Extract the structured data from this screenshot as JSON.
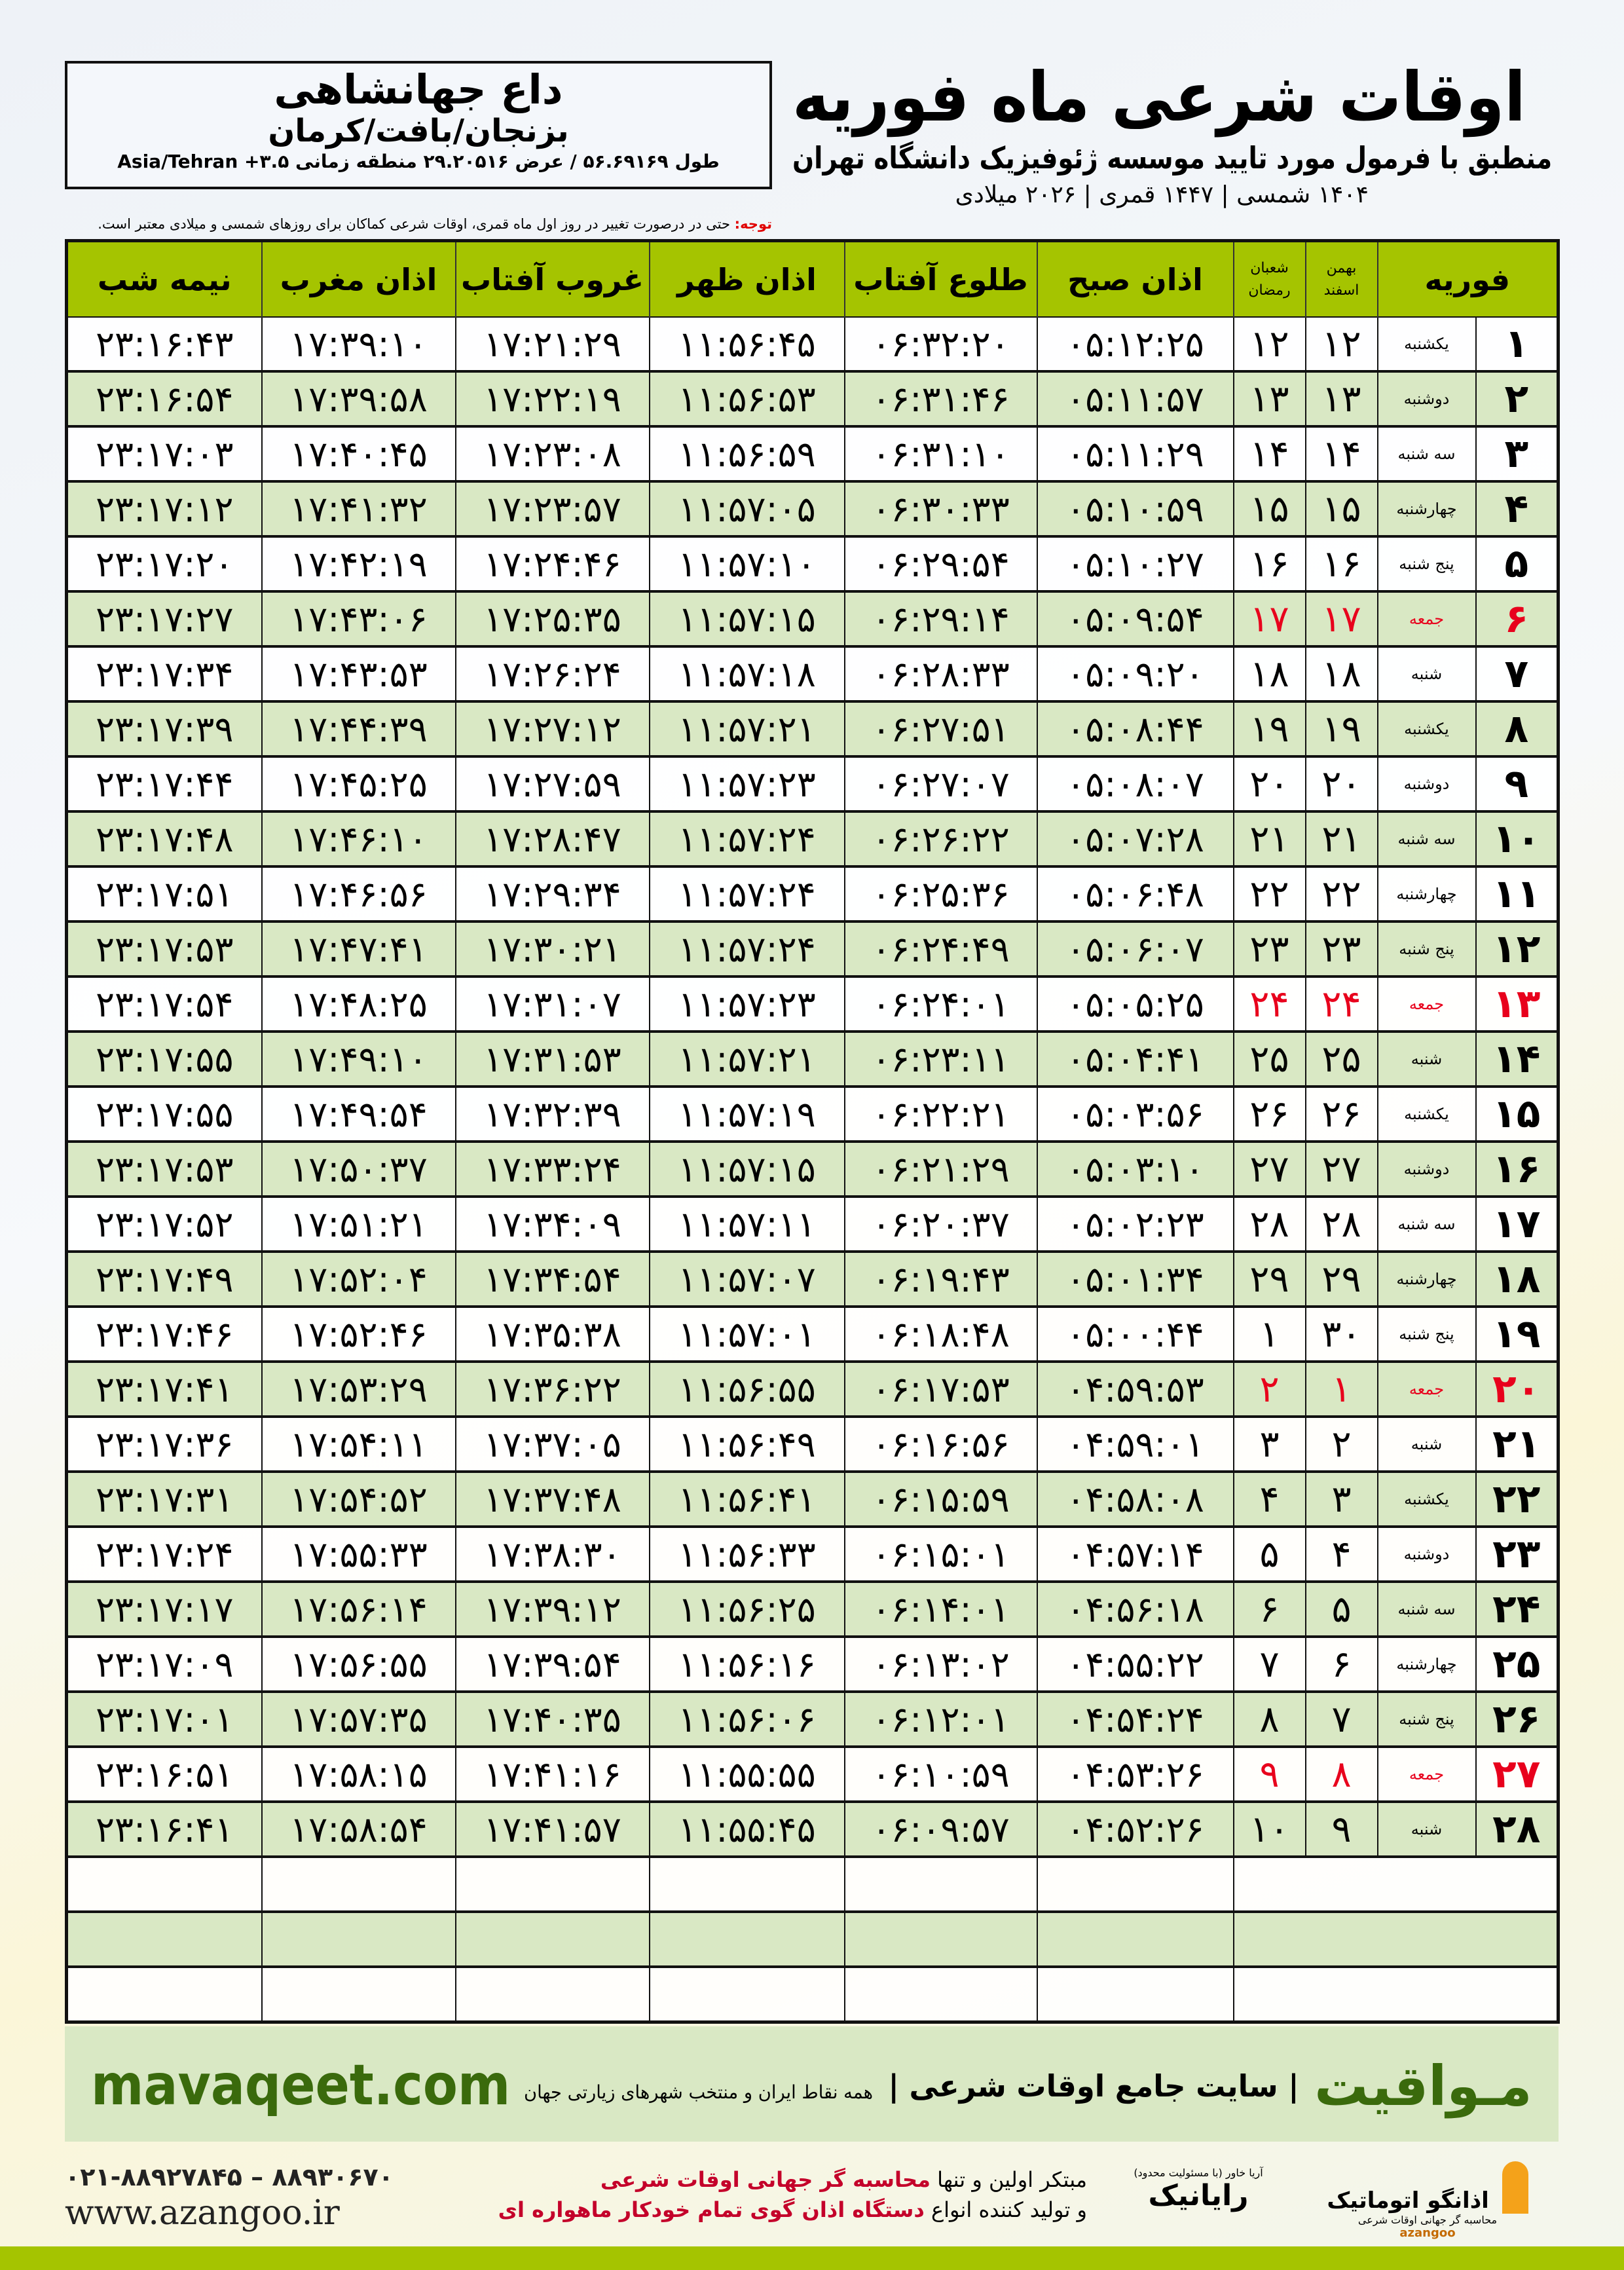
{
  "location": {
    "name": "داع جهانشاهی",
    "region": "بزنجان/بافت/کرمان",
    "coords": "طول ۵۶.۶۹۱۶۹ / عرض ۲۹.۲۰۵۱۶ منطقه زمانی ۳.۵+ Asia/Tehran"
  },
  "header": {
    "title": "اوقات شرعی ماه فوریه",
    "subtitle": "منطبق با فرمول مورد تایید موسسه ژئوفیزیک دانشگاه تهران",
    "dates": "۱۴۰۴ شمسی | ۱۴۴۷ قمری | ۲۰۲۶ میلادی",
    "note_label": "توجه:",
    "note_text": " حتی در درصورت تغییر در روز اول ماه قمری، اوقات شرعی کماکان برای روزهای شمسی و میلادی معتبر است."
  },
  "table": {
    "headers": {
      "month": "فوریه",
      "solar_top": "بهمن",
      "solar_bottom": "اسفند",
      "lunar_top": "شعبان",
      "lunar_bottom": "رمضان",
      "fajr": "اذان صبح",
      "sunrise": "طلوع آفتاب",
      "dhuhr": "اذان ظهر",
      "sunset": "غروب آفتاب",
      "maghrib": "اذان مغرب",
      "midnight": "نیمه شب"
    },
    "rows": [
      [
        "۱",
        "یکشنبه",
        "۱۲",
        "۱۲",
        "۰۵:۱۲:۲۵",
        "۰۶:۳۲:۲۰",
        "۱۱:۵۶:۴۵",
        "۱۷:۲۱:۲۹",
        "۱۷:۳۹:۱۰",
        "۲۳:۱۶:۴۳"
      ],
      [
        "۲",
        "دوشنبه",
        "۱۳",
        "۱۳",
        "۰۵:۱۱:۵۷",
        "۰۶:۳۱:۴۶",
        "۱۱:۵۶:۵۳",
        "۱۷:۲۲:۱۹",
        "۱۷:۳۹:۵۸",
        "۲۳:۱۶:۵۴"
      ],
      [
        "۳",
        "سه شنبه",
        "۱۴",
        "۱۴",
        "۰۵:۱۱:۲۹",
        "۰۶:۳۱:۱۰",
        "۱۱:۵۶:۵۹",
        "۱۷:۲۳:۰۸",
        "۱۷:۴۰:۴۵",
        "۲۳:۱۷:۰۳"
      ],
      [
        "۴",
        "چهارشنبه",
        "۱۵",
        "۱۵",
        "۰۵:۱۰:۵۹",
        "۰۶:۳۰:۳۳",
        "۱۱:۵۷:۰۵",
        "۱۷:۲۳:۵۷",
        "۱۷:۴۱:۳۲",
        "۲۳:۱۷:۱۲"
      ],
      [
        "۵",
        "پنج شنبه",
        "۱۶",
        "۱۶",
        "۰۵:۱۰:۲۷",
        "۰۶:۲۹:۵۴",
        "۱۱:۵۷:۱۰",
        "۱۷:۲۴:۴۶",
        "۱۷:۴۲:۱۹",
        "۲۳:۱۷:۲۰"
      ],
      [
        "۶",
        "جمعه",
        "۱۷",
        "۱۷",
        "۰۵:۰۹:۵۴",
        "۰۶:۲۹:۱۴",
        "۱۱:۵۷:۱۵",
        "۱۷:۲۵:۳۵",
        "۱۷:۴۳:۰۶",
        "۲۳:۱۷:۲۷"
      ],
      [
        "۷",
        "شنبه",
        "۱۸",
        "۱۸",
        "۰۵:۰۹:۲۰",
        "۰۶:۲۸:۳۳",
        "۱۱:۵۷:۱۸",
        "۱۷:۲۶:۲۴",
        "۱۷:۴۳:۵۳",
        "۲۳:۱۷:۳۴"
      ],
      [
        "۸",
        "یکشنبه",
        "۱۹",
        "۱۹",
        "۰۵:۰۸:۴۴",
        "۰۶:۲۷:۵۱",
        "۱۱:۵۷:۲۱",
        "۱۷:۲۷:۱۲",
        "۱۷:۴۴:۳۹",
        "۲۳:۱۷:۳۹"
      ],
      [
        "۹",
        "دوشنبه",
        "۲۰",
        "۲۰",
        "۰۵:۰۸:۰۷",
        "۰۶:۲۷:۰۷",
        "۱۱:۵۷:۲۳",
        "۱۷:۲۷:۵۹",
        "۱۷:۴۵:۲۵",
        "۲۳:۱۷:۴۴"
      ],
      [
        "۱۰",
        "سه شنبه",
        "۲۱",
        "۲۱",
        "۰۵:۰۷:۲۸",
        "۰۶:۲۶:۲۲",
        "۱۱:۵۷:۲۴",
        "۱۷:۲۸:۴۷",
        "۱۷:۴۶:۱۰",
        "۲۳:۱۷:۴۸"
      ],
      [
        "۱۱",
        "چهارشنبه",
        "۲۲",
        "۲۲",
        "۰۵:۰۶:۴۸",
        "۰۶:۲۵:۳۶",
        "۱۱:۵۷:۲۴",
        "۱۷:۲۹:۳۴",
        "۱۷:۴۶:۵۶",
        "۲۳:۱۷:۵۱"
      ],
      [
        "۱۲",
        "پنج شنبه",
        "۲۳",
        "۲۳",
        "۰۵:۰۶:۰۷",
        "۰۶:۲۴:۴۹",
        "۱۱:۵۷:۲۴",
        "۱۷:۳۰:۲۱",
        "۱۷:۴۷:۴۱",
        "۲۳:۱۷:۵۳"
      ],
      [
        "۱۳",
        "جمعه",
        "۲۴",
        "۲۴",
        "۰۵:۰۵:۲۵",
        "۰۶:۲۴:۰۱",
        "۱۱:۵۷:۲۳",
        "۱۷:۳۱:۰۷",
        "۱۷:۴۸:۲۵",
        "۲۳:۱۷:۵۴"
      ],
      [
        "۱۴",
        "شنبه",
        "۲۵",
        "۲۵",
        "۰۵:۰۴:۴۱",
        "۰۶:۲۳:۱۱",
        "۱۱:۵۷:۲۱",
        "۱۷:۳۱:۵۳",
        "۱۷:۴۹:۱۰",
        "۲۳:۱۷:۵۵"
      ],
      [
        "۱۵",
        "یکشنبه",
        "۲۶",
        "۲۶",
        "۰۵:۰۳:۵۶",
        "۰۶:۲۲:۲۱",
        "۱۱:۵۷:۱۹",
        "۱۷:۳۲:۳۹",
        "۱۷:۴۹:۵۴",
        "۲۳:۱۷:۵۵"
      ],
      [
        "۱۶",
        "دوشنبه",
        "۲۷",
        "۲۷",
        "۰۵:۰۳:۱۰",
        "۰۶:۲۱:۲۹",
        "۱۱:۵۷:۱۵",
        "۱۷:۳۳:۲۴",
        "۱۷:۵۰:۳۷",
        "۲۳:۱۷:۵۳"
      ],
      [
        "۱۷",
        "سه شنبه",
        "۲۸",
        "۲۸",
        "۰۵:۰۲:۲۳",
        "۰۶:۲۰:۳۷",
        "۱۱:۵۷:۱۱",
        "۱۷:۳۴:۰۹",
        "۱۷:۵۱:۲۱",
        "۲۳:۱۷:۵۲"
      ],
      [
        "۱۸",
        "چهارشنبه",
        "۲۹",
        "۲۹",
        "۰۵:۰۱:۳۴",
        "۰۶:۱۹:۴۳",
        "۱۱:۵۷:۰۷",
        "۱۷:۳۴:۵۴",
        "۱۷:۵۲:۰۴",
        "۲۳:۱۷:۴۹"
      ],
      [
        "۱۹",
        "پنج شنبه",
        "۳۰",
        "۱",
        "۰۵:۰۰:۴۴",
        "۰۶:۱۸:۴۸",
        "۱۱:۵۷:۰۱",
        "۱۷:۳۵:۳۸",
        "۱۷:۵۲:۴۶",
        "۲۳:۱۷:۴۶"
      ],
      [
        "۲۰",
        "جمعه",
        "۱",
        "۲",
        "۰۴:۵۹:۵۳",
        "۰۶:۱۷:۵۳",
        "۱۱:۵۶:۵۵",
        "۱۷:۳۶:۲۲",
        "۱۷:۵۳:۲۹",
        "۲۳:۱۷:۴۱"
      ],
      [
        "۲۱",
        "شنبه",
        "۲",
        "۳",
        "۰۴:۵۹:۰۱",
        "۰۶:۱۶:۵۶",
        "۱۱:۵۶:۴۹",
        "۱۷:۳۷:۰۵",
        "۱۷:۵۴:۱۱",
        "۲۳:۱۷:۳۶"
      ],
      [
        "۲۲",
        "یکشنبه",
        "۳",
        "۴",
        "۰۴:۵۸:۰۸",
        "۰۶:۱۵:۵۹",
        "۱۱:۵۶:۴۱",
        "۱۷:۳۷:۴۸",
        "۱۷:۵۴:۵۲",
        "۲۳:۱۷:۳۱"
      ],
      [
        "۲۳",
        "دوشنبه",
        "۴",
        "۵",
        "۰۴:۵۷:۱۴",
        "۰۶:۱۵:۰۱",
        "۱۱:۵۶:۳۳",
        "۱۷:۳۸:۳۰",
        "۱۷:۵۵:۳۳",
        "۲۳:۱۷:۲۴"
      ],
      [
        "۲۴",
        "سه شنبه",
        "۵",
        "۶",
        "۰۴:۵۶:۱۸",
        "۰۶:۱۴:۰۱",
        "۱۱:۵۶:۲۵",
        "۱۷:۳۹:۱۲",
        "۱۷:۵۶:۱۴",
        "۲۳:۱۷:۱۷"
      ],
      [
        "۲۵",
        "چهارشنبه",
        "۶",
        "۷",
        "۰۴:۵۵:۲۲",
        "۰۶:۱۳:۰۲",
        "۱۱:۵۶:۱۶",
        "۱۷:۳۹:۵۴",
        "۱۷:۵۶:۵۵",
        "۲۳:۱۷:۰۹"
      ],
      [
        "۲۶",
        "پنج شنبه",
        "۷",
        "۸",
        "۰۴:۵۴:۲۴",
        "۰۶:۱۲:۰۱",
        "۱۱:۵۶:۰۶",
        "۱۷:۴۰:۳۵",
        "۱۷:۵۷:۳۵",
        "۲۳:۱۷:۰۱"
      ],
      [
        "۲۷",
        "جمعه",
        "۸",
        "۹",
        "۰۴:۵۳:۲۶",
        "۰۶:۱۰:۵۹",
        "۱۱:۵۵:۵۵",
        "۱۷:۴۱:۱۶",
        "۱۷:۵۸:۱۵",
        "۲۳:۱۶:۵۱"
      ],
      [
        "۲۸",
        "شنبه",
        "۹",
        "۱۰",
        "۰۴:۵۲:۲۶",
        "۰۶:۰۹:۵۷",
        "۱۱:۵۵:۴۵",
        "۱۷:۴۱:۵۷",
        "۱۷:۵۸:۵۴",
        "۲۳:۱۶:۴۱"
      ]
    ],
    "empty_rows": 3,
    "friday": "جمعه"
  },
  "banner": {
    "brand": "مـواقیت",
    "tagline": "| سایت جامع اوقات شرعی |",
    "sub": "همه نقاط ایران و منتخب شهرهای زیارتی جهان",
    "site": "mavaqeet.com"
  },
  "footer": {
    "phones": "۰۲۱-۸۸۹۲۷۸۴۵ – ۸۸۹۳۰۶۷۰",
    "web": "www.azangoo.ir",
    "promo_1a": "مبتکر اولین و تنها ",
    "promo_1b": "محاسبه گر جهانی اوقات شرعی",
    "promo_2a": "و تولید کننده انواع ",
    "promo_2b": "دستگاه اذان گوی تمام خودکار ماهواره ای",
    "logo_rayanik": "رایانیک",
    "logo_rayanik_sub": "آریا خاور (با مسئولیت محدود)",
    "logo_azangoo": "اذانگو اتوماتیک",
    "logo_azangoo_sub": "محاسبه گر جهانی اوقات شرعی",
    "logo_azangoo_latin": "azangoo"
  },
  "colors": {
    "header_green": "#a5c400",
    "row_green": "#d9e8c4",
    "friday_red": "#e8001c",
    "brand_green": "#3a6a0c"
  }
}
